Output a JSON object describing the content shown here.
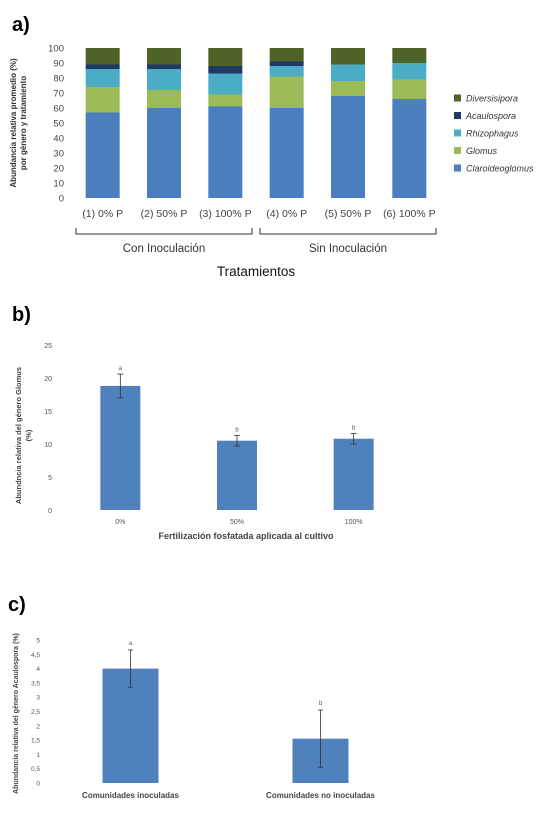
{
  "panel_labels": {
    "a": "a)",
    "b": "b)",
    "c": "c)"
  },
  "chart_data": [
    {
      "type": "bar",
      "stacked": true,
      "ylabel_line1": "Abundancia relativa promedio (%)",
      "ylabel_line2": "por género y tratamiento",
      "xlabel": "Tratamientos",
      "ylim": [
        0,
        100
      ],
      "yticks": [
        0,
        10,
        20,
        30,
        40,
        50,
        60,
        70,
        80,
        90,
        100
      ],
      "categories": [
        "(1) 0% P",
        "(2) 50% P",
        "(3) 100% P",
        "(4) 0% P",
        "(5) 50% P",
        "(6) 100% P"
      ],
      "groups": [
        {
          "label": "Con Inoculación",
          "categories": [
            0,
            1,
            2
          ]
        },
        {
          "label": "Sin Inoculación",
          "categories": [
            3,
            4,
            5
          ]
        }
      ],
      "legend_position": "right",
      "series": [
        {
          "name": "Claroideoglomus",
          "color": "#4a7ebf",
          "values": [
            57,
            60,
            61,
            60,
            68,
            66
          ]
        },
        {
          "name": "Glomus",
          "color": "#9bbb59",
          "values": [
            17,
            12,
            8,
            21,
            10,
            13
          ]
        },
        {
          "name": "Rhizophagus",
          "color": "#4bacc6",
          "values": [
            12,
            14,
            14,
            7,
            11,
            11
          ]
        },
        {
          "name": "Acaulospora",
          "color": "#1f3864",
          "values": [
            3,
            3,
            5,
            3,
            0,
            0
          ]
        },
        {
          "name": "Diversisipora",
          "color": "#4f6228",
          "values": [
            11,
            11,
            12,
            9,
            11,
            10
          ]
        }
      ]
    },
    {
      "type": "bar",
      "ylabel_line1": "Abundncia relativa del género Glomus",
      "ylabel_line2": "(%)",
      "xlabel": "Fertilización fosfatada aplicada al cultivo",
      "ylim": [
        0,
        25
      ],
      "yticks": [
        0,
        5,
        10,
        15,
        20,
        25
      ],
      "categories": [
        "0%",
        "50%",
        "100%"
      ],
      "values": [
        18.8,
        10.5,
        10.8
      ],
      "errors": [
        1.8,
        0.8,
        0.8
      ],
      "letters": [
        "a",
        "b",
        "b"
      ],
      "color": "#4f81bd",
      "grid": false
    },
    {
      "type": "bar",
      "ylabel": "Abundancia relativa del género Acaulospora (%)",
      "ylim": [
        0,
        5
      ],
      "yticks": [
        "0",
        "0,5",
        "1",
        "1,5",
        "2",
        "2,5",
        "3",
        "3,5",
        "4",
        "4,5",
        "5"
      ],
      "categories": [
        "Comunidades inoculadas",
        "Comunidades no inoculadas"
      ],
      "values": [
        4.0,
        1.55
      ],
      "errors": [
        0.65,
        1.0
      ],
      "letters": [
        "a",
        "b"
      ],
      "color": "#4f81bd",
      "grid": false
    }
  ]
}
